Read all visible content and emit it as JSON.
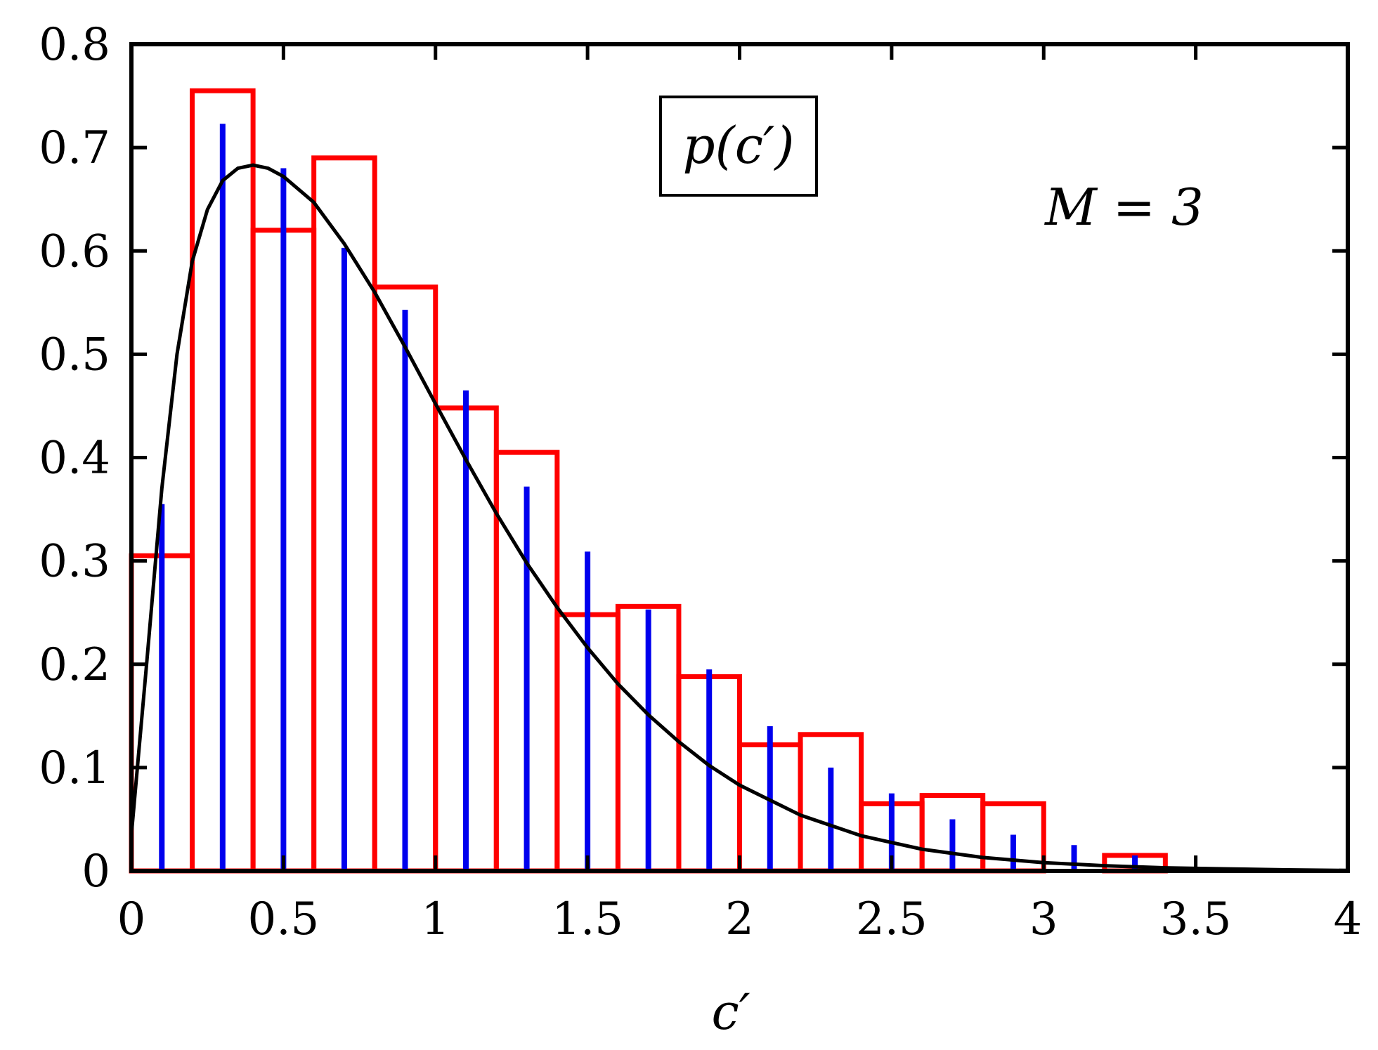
{
  "chart_data": {
    "type": "bar",
    "xlabel": "c′",
    "ylabel": "",
    "xlim": [
      0,
      4
    ],
    "ylim": [
      0,
      0.8
    ],
    "xticks": [
      "0",
      "0.5",
      "1",
      "1.5",
      "2",
      "2.5",
      "3",
      "3.5",
      "4"
    ],
    "yticks": [
      "0",
      "0.1",
      "0.2",
      "0.3",
      "0.4",
      "0.5",
      "0.6",
      "0.7",
      "0.8"
    ],
    "legend": {
      "label": "p(c′)",
      "placement": "top-center"
    },
    "annotation": "M = 3",
    "grid": false,
    "colors": {
      "histogram": "#ff0000",
      "stems": "#0000ee",
      "curve": "#000000"
    },
    "series": [
      {
        "kind": "histogram",
        "bin_width": 0.2,
        "x": [
          0.0,
          0.2,
          0.4,
          0.6,
          0.8,
          1.0,
          1.2,
          1.4,
          1.6,
          1.8,
          2.0,
          2.2,
          2.4,
          2.6,
          2.8,
          3.0,
          3.2,
          3.4,
          3.6,
          3.8
        ],
        "values": [
          0.305,
          0.755,
          0.62,
          0.69,
          0.565,
          0.448,
          0.405,
          0.248,
          0.256,
          0.188,
          0.122,
          0.132,
          0.065,
          0.073,
          0.065,
          0.0,
          0.015,
          0.0,
          0.0,
          0.0
        ]
      },
      {
        "kind": "stems",
        "x": [
          0.1,
          0.3,
          0.5,
          0.7,
          0.9,
          1.1,
          1.3,
          1.5,
          1.7,
          1.9,
          2.1,
          2.3,
          2.5,
          2.7,
          2.9,
          3.1,
          3.3
        ],
        "values": [
          0.355,
          0.723,
          0.68,
          0.603,
          0.543,
          0.465,
          0.372,
          0.309,
          0.253,
          0.195,
          0.14,
          0.1,
          0.075,
          0.05,
          0.035,
          0.025,
          0.015
        ]
      },
      {
        "kind": "curve",
        "x": [
          0.0,
          0.05,
          0.1,
          0.15,
          0.2,
          0.25,
          0.3,
          0.35,
          0.4,
          0.45,
          0.5,
          0.6,
          0.7,
          0.8,
          0.9,
          1.0,
          1.1,
          1.2,
          1.3,
          1.4,
          1.5,
          1.6,
          1.7,
          1.8,
          1.9,
          2.0,
          2.2,
          2.4,
          2.6,
          2.8,
          3.0,
          3.2,
          3.4,
          3.6,
          3.8,
          4.0
        ],
        "values": [
          0.035,
          0.2,
          0.37,
          0.5,
          0.59,
          0.64,
          0.668,
          0.68,
          0.683,
          0.68,
          0.672,
          0.647,
          0.607,
          0.56,
          0.507,
          0.452,
          0.398,
          0.346,
          0.298,
          0.255,
          0.216,
          0.181,
          0.151,
          0.125,
          0.102,
          0.083,
          0.054,
          0.034,
          0.021,
          0.013,
          0.008,
          0.005,
          0.003,
          0.002,
          0.001,
          0.0005
        ]
      }
    ]
  }
}
